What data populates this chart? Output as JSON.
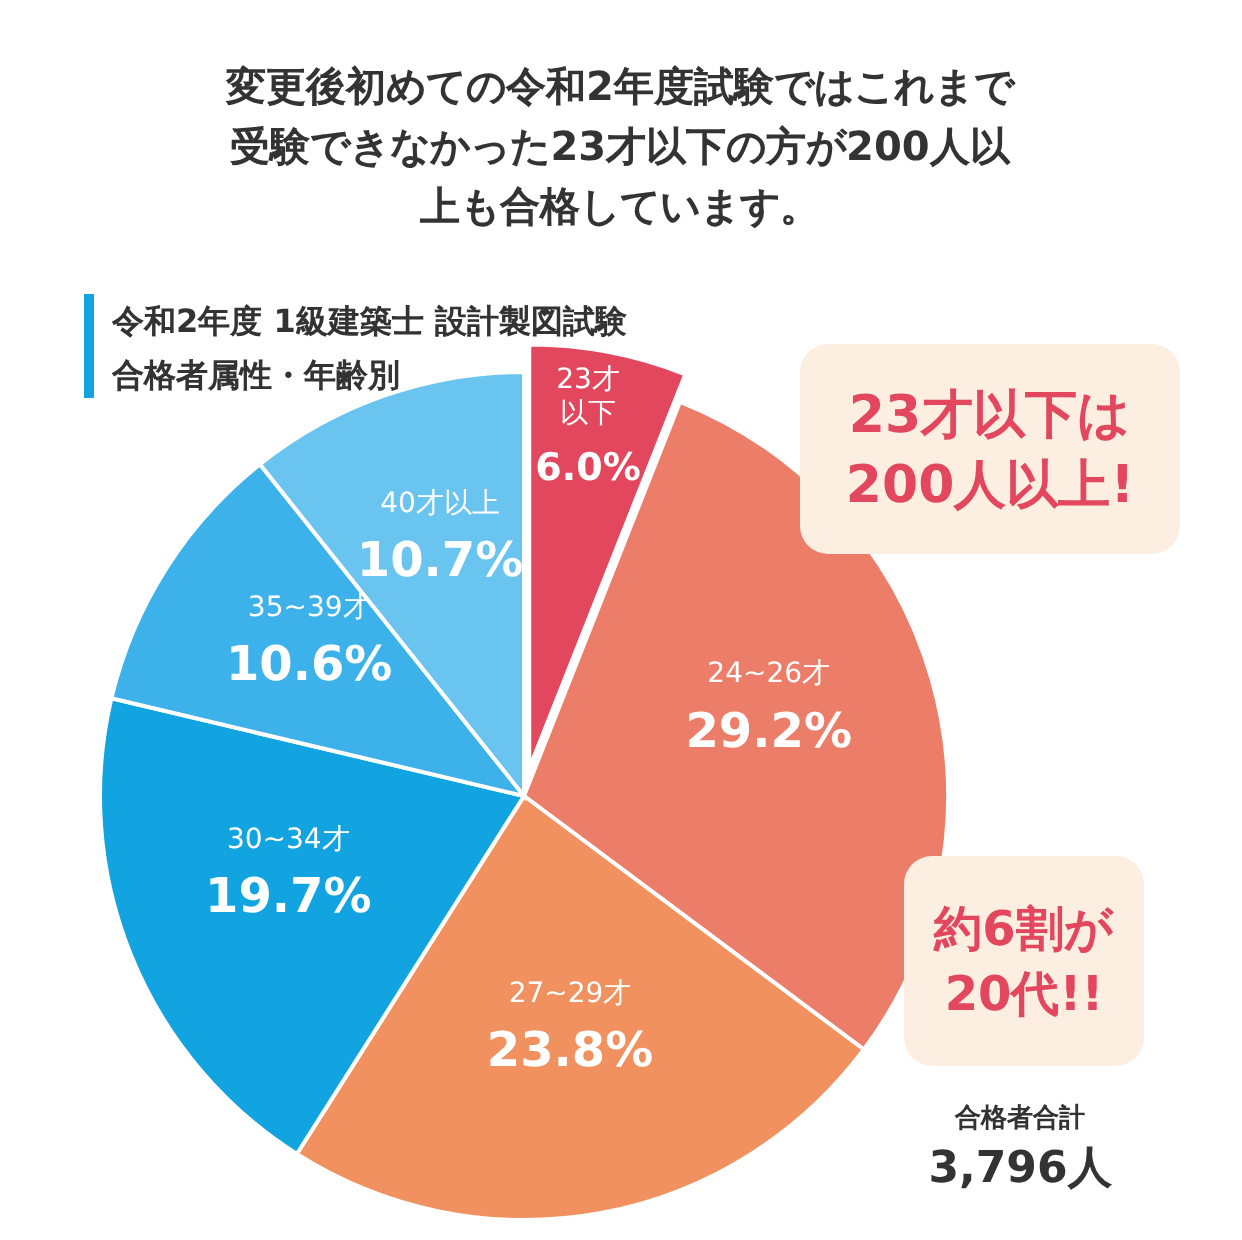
{
  "chart_data": {
    "type": "pie",
    "title": "変更後初めての令和2年度試験ではこれまで受験できなかった23才以下の方が200人以上も合格しています。",
    "subtitle": "令和2年度 1級建築士 設計製図試験合格者属性・年齢別",
    "categories": [
      "23才以下",
      "24~26才",
      "27~29才",
      "30~34才",
      "35~39才",
      "40才以上"
    ],
    "values": [
      6.0,
      29.2,
      23.8,
      19.7,
      10.6,
      10.7
    ],
    "value_labels": [
      "6.0%",
      "29.2%",
      "23.8%",
      "19.7%",
      "10.6%",
      "10.7%"
    ],
    "colors": [
      "#e2475d",
      "#ec7d69",
      "#f0915f",
      "#12a4e0",
      "#3db2ea",
      "#69c4ef"
    ],
    "annotations": [
      "23才以下は\n200人以上!",
      "約6割が\n20代!!",
      "合格者合計\n3,796人"
    ]
  }
}
